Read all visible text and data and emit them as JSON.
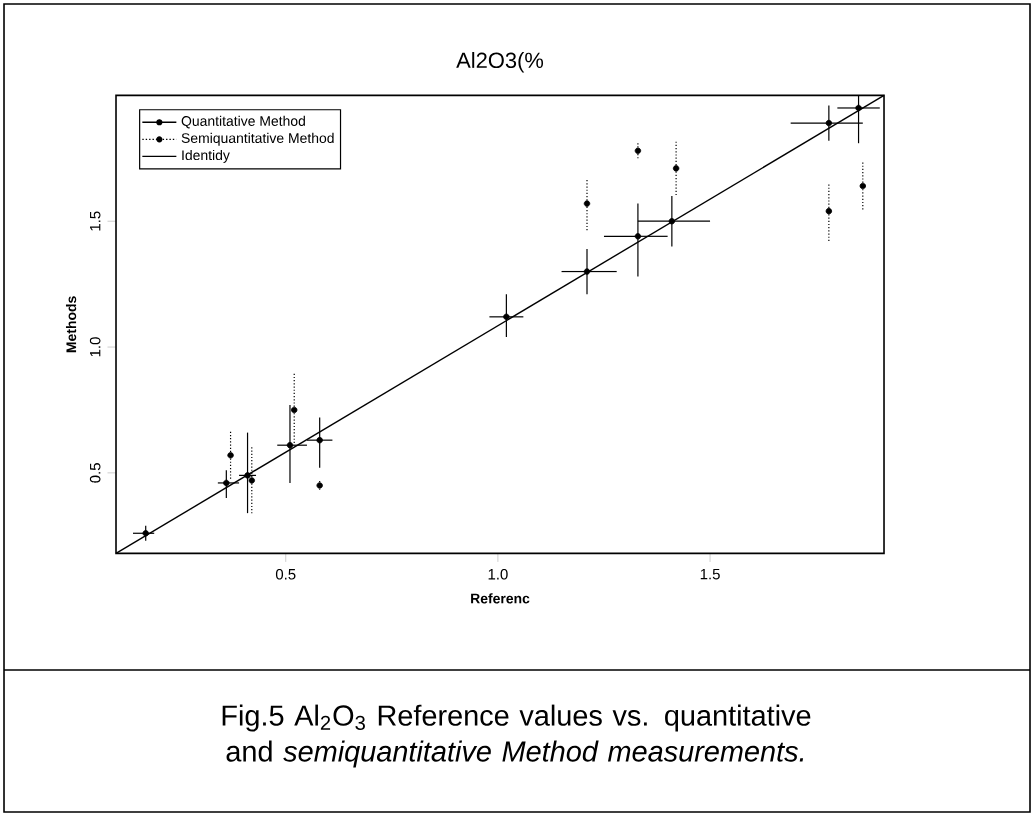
{
  "chart_data": {
    "type": "scatter",
    "title": "Al2O3(%",
    "xlabel": "Referenc",
    "ylabel": "Methods",
    "annotations": [
      "Fig.5 Al$_{2}$O$_{3}$ Reference values vs. quantitative and *semiquantitative Method measurements.*"
    ],
    "xlim": [
      0.1,
      1.91
    ],
    "ylim": [
      0.18,
      2.0
    ],
    "xticks": [
      0.5,
      {
        "value": 1.0,
        "label": "1.0"
      },
      1.5
    ],
    "yticks": [
      0.5,
      {
        "value": 1.0,
        "label": "1.0"
      },
      1.5
    ],
    "legend": "top left",
    "series": [
      {
        "name": "Quantitative Method",
        "color": "#000000",
        "marker": "circle",
        "line_style": "solid",
        "x": [
          0.17,
          0.36,
          0.41,
          0.51,
          0.58,
          1.02,
          1.21,
          1.33,
          1.41,
          1.78,
          1.85
        ],
        "values": [
          0.26,
          0.46,
          0.49,
          0.61,
          0.63,
          1.12,
          1.3,
          1.44,
          1.5,
          1.89,
          1.95
        ],
        "errors": [
          [
            0.23,
            0.29
          ],
          [
            0.4,
            0.51
          ],
          [
            0.34,
            0.66
          ],
          [
            0.46,
            0.77
          ],
          [
            0.52,
            0.72
          ],
          [
            1.04,
            1.21
          ],
          [
            1.21,
            1.39
          ],
          [
            1.28,
            1.57
          ],
          [
            1.4,
            1.6
          ],
          [
            1.82,
            1.96
          ],
          [
            1.81,
            2.0
          ]
        ],
        "xerrors": [
          [
            0.14,
            0.19
          ],
          [
            0.34,
            0.39
          ],
          [
            0.39,
            0.43
          ],
          [
            0.48,
            0.55
          ],
          [
            0.55,
            0.61
          ],
          [
            0.98,
            1.06
          ],
          [
            1.15,
            1.28
          ],
          [
            1.25,
            1.4
          ],
          [
            1.33,
            1.5
          ],
          [
            1.69,
            1.86
          ],
          [
            1.8,
            1.9
          ]
        ]
      },
      {
        "name": "Semiquantitative Method",
        "color": "#000000",
        "marker": "circle",
        "line_style": "dotted",
        "x": [
          0.37,
          0.42,
          0.52,
          0.58,
          1.21,
          1.33,
          1.42,
          1.78,
          1.86
        ],
        "values": [
          0.57,
          0.47,
          0.75,
          0.45,
          1.57,
          1.78,
          1.71,
          1.54,
          1.64
        ],
        "errors": [
          [
            0.47,
            0.67
          ],
          [
            0.34,
            0.61
          ],
          [
            0.61,
            0.9
          ],
          [
            0.43,
            0.47
          ],
          [
            1.46,
            1.67
          ],
          [
            1.75,
            1.81
          ],
          [
            1.6,
            1.82
          ],
          [
            1.42,
            1.65
          ],
          [
            1.54,
            1.74
          ]
        ]
      },
      {
        "name": "Identidy",
        "type": "line",
        "color": "#000000",
        "line_style": "solid",
        "x": [
          0.1,
          1.91
        ],
        "values": [
          0.18,
          2.0
        ]
      }
    ]
  }
}
